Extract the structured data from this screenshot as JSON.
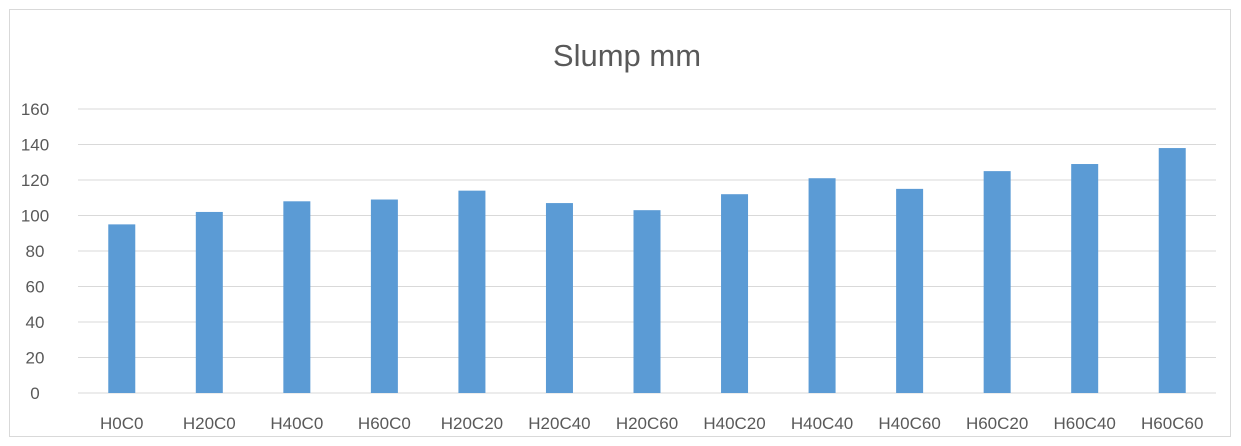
{
  "chart_data": {
    "type": "bar",
    "title": "Slump mm",
    "xlabel": "",
    "ylabel": "",
    "categories": [
      "H0C0",
      "H20C0",
      "H40C0",
      "H60C0",
      "H20C20",
      "H20C40",
      "H20C60",
      "H40C20",
      "H40C40",
      "H40C60",
      "H60C20",
      "H60C40",
      "H60C60"
    ],
    "values": [
      95,
      102,
      108,
      109,
      114,
      107,
      103,
      112,
      121,
      115,
      125,
      129,
      138
    ],
    "ylim": [
      0,
      160
    ],
    "yticks": [
      0,
      20,
      40,
      60,
      80,
      100,
      120,
      140,
      160
    ],
    "grid": true,
    "legend": "none",
    "bar_color": "#5b9bd5"
  }
}
